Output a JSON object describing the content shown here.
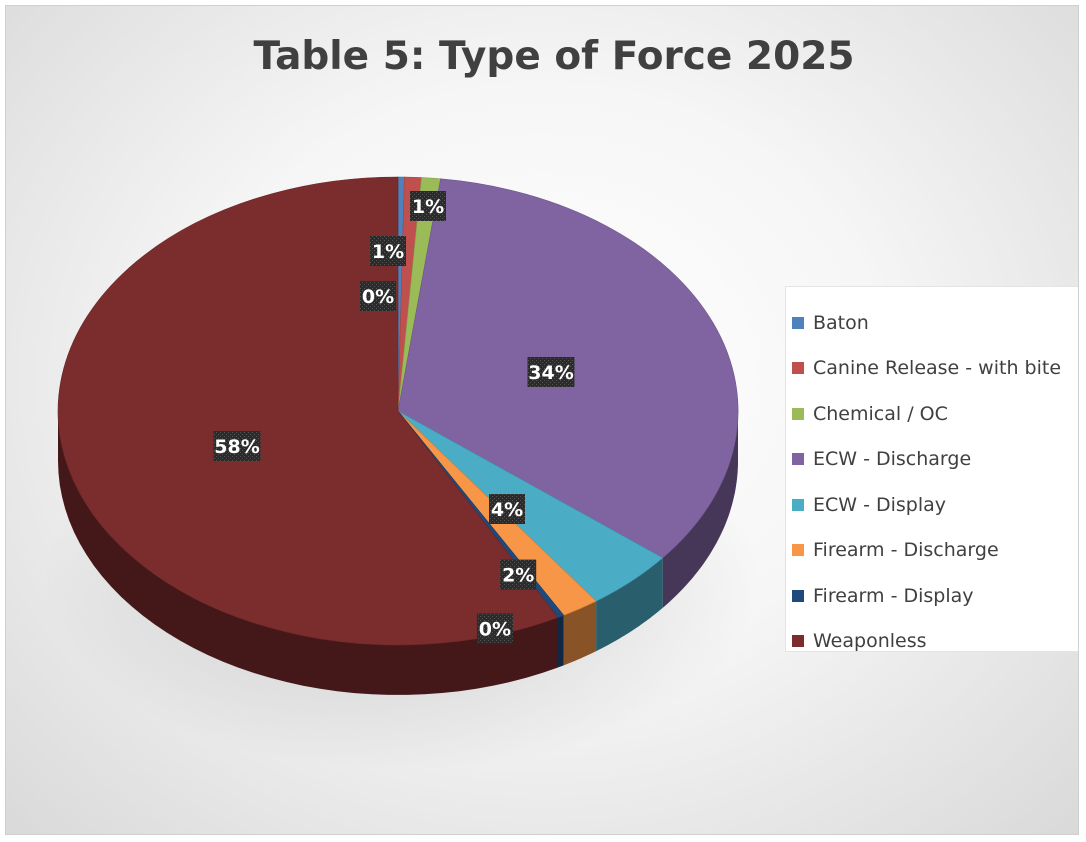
{
  "chart_data": {
    "type": "pie",
    "title": "Table 5: Type of Force 2025",
    "categories": [
      "Baton",
      "Canine Release - with bite",
      "Chemical / OC",
      "ECW - Discharge",
      "ECW - Display",
      "Firearm - Discharge",
      "Firearm - Display",
      "Weaponless"
    ],
    "values": [
      0.3,
      0.8,
      0.9,
      33.8,
      4.3,
      1.8,
      0.3,
      57.8
    ],
    "data_labels": [
      "0%",
      "1%",
      "1%",
      "34%",
      "4%",
      "2%",
      "0%",
      "58%"
    ],
    "colors": [
      "#4f81bd",
      "#c0504d",
      "#9bbb59",
      "#8064a2",
      "#4bacc6",
      "#f79646",
      "#1f497d",
      "#7b2c2c"
    ],
    "legend_position": "right",
    "three_d": true
  }
}
